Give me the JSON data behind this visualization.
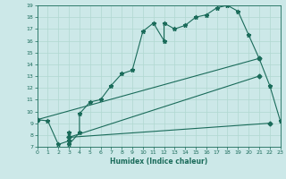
{
  "title": "",
  "xlabel": "Humidex (Indice chaleur)",
  "ylabel": "",
  "bg_color": "#cce8e8",
  "line_color": "#1a6b5a",
  "xlim": [
    0,
    23
  ],
  "ylim": [
    7,
    19
  ],
  "xticks": [
    0,
    1,
    2,
    3,
    4,
    5,
    6,
    7,
    8,
    9,
    10,
    11,
    12,
    13,
    14,
    15,
    16,
    17,
    18,
    19,
    20,
    21,
    22,
    23
  ],
  "yticks": [
    7,
    8,
    9,
    10,
    11,
    12,
    13,
    14,
    15,
    16,
    17,
    18,
    19
  ],
  "line1_x": [
    0,
    1,
    2,
    3,
    3,
    3,
    4,
    4,
    5,
    6,
    7,
    8,
    9,
    10,
    11,
    12,
    12,
    13,
    14,
    15,
    16,
    17,
    18,
    19,
    20,
    21,
    22,
    23
  ],
  "line1_y": [
    9.3,
    9.2,
    7.2,
    7.5,
    8.2,
    7.2,
    8.2,
    9.8,
    10.8,
    11.0,
    12.2,
    13.2,
    13.5,
    16.8,
    17.5,
    16.0,
    17.5,
    17.0,
    17.3,
    18.0,
    18.2,
    18.8,
    19.0,
    18.5,
    16.5,
    14.5,
    12.2,
    9.2
  ],
  "line2_x": [
    0,
    21
  ],
  "line2_y": [
    9.3,
    14.5
  ],
  "line3_x": [
    3,
    21
  ],
  "line3_y": [
    7.8,
    13.0
  ],
  "line4_x": [
    3,
    22
  ],
  "line4_y": [
    7.8,
    9.0
  ],
  "grid_color": "#b0d8d0"
}
